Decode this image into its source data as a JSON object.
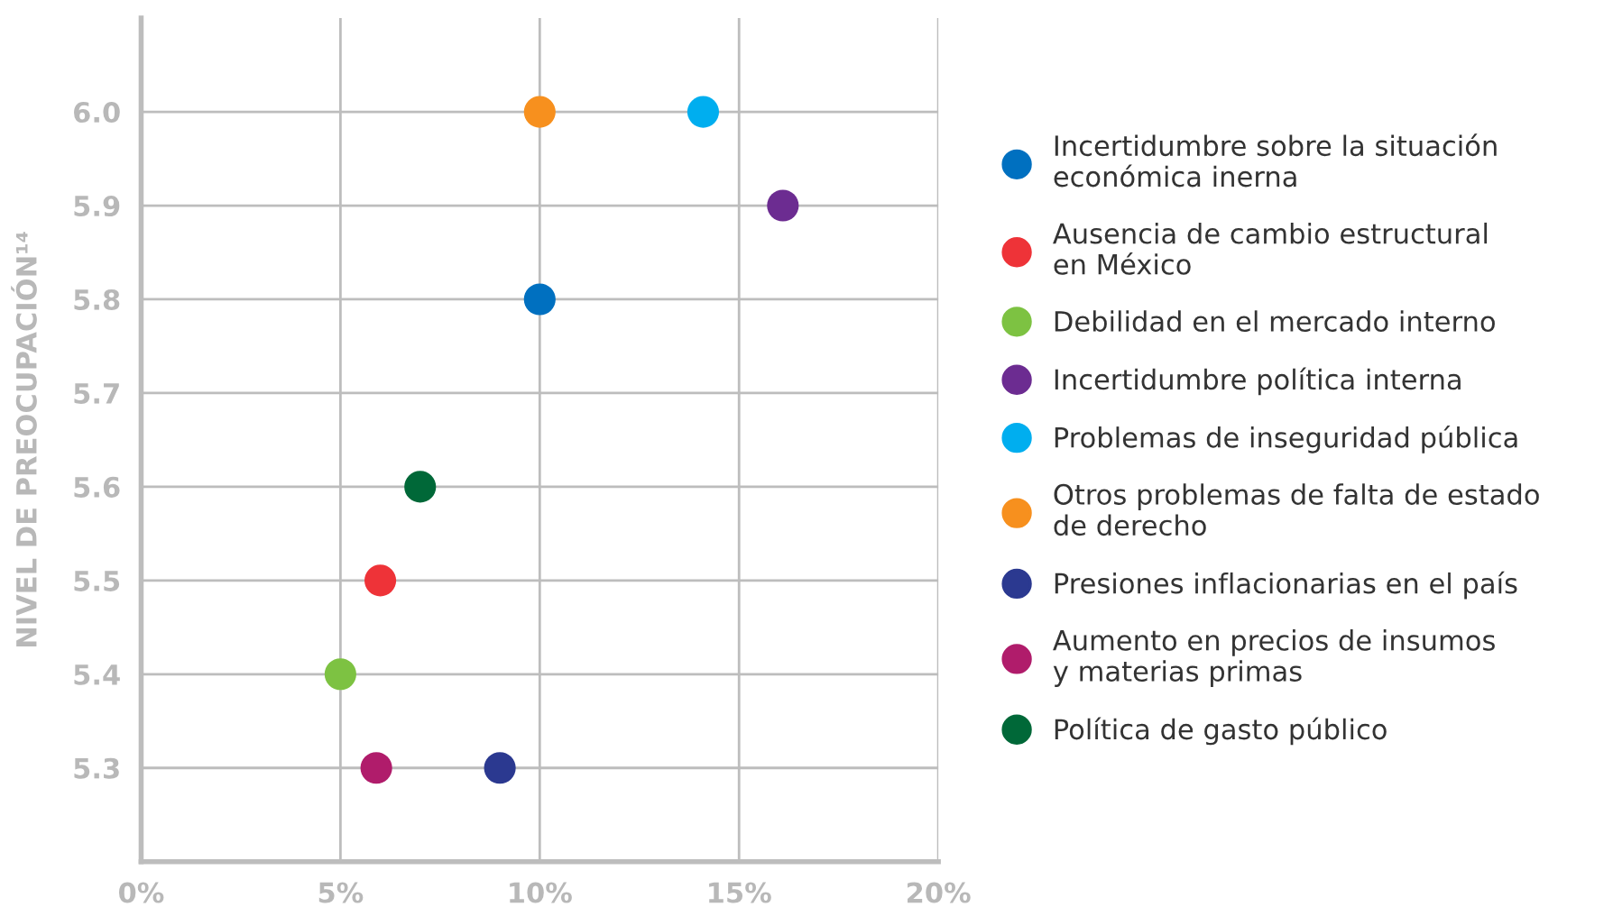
{
  "chart_data": {
    "type": "scatter",
    "ylabel": "NIVEL DE PREOCUPACIÓN¹⁴",
    "xlim": [
      0,
      20
    ],
    "xticks": [
      {
        "value": 0,
        "label": "0%"
      },
      {
        "value": 5,
        "label": "5%"
      },
      {
        "value": 10,
        "label": "10%"
      },
      {
        "value": 15,
        "label": "15%"
      },
      {
        "value": 20,
        "label": "20%"
      }
    ],
    "ylim": [
      5.2,
      6.1
    ],
    "yticks": [
      {
        "value": 5.3,
        "label": "5.3"
      },
      {
        "value": 5.4,
        "label": "5.4"
      },
      {
        "value": 5.5,
        "label": "5.5"
      },
      {
        "value": 5.6,
        "label": "5.6"
      },
      {
        "value": 5.7,
        "label": "5.7"
      },
      {
        "value": 5.8,
        "label": "5.8"
      },
      {
        "value": 5.9,
        "label": "5.9"
      },
      {
        "value": 6.0,
        "label": "6.0"
      }
    ],
    "grid": true,
    "legend": "right",
    "marker": "circle",
    "series": [
      {
        "name": "Incertidumbre sobre la situación\neconómica inerna",
        "color": "#0070c0",
        "x": [
          10.0
        ],
        "values": [
          5.8
        ]
      },
      {
        "name": "Ausencia de cambio estructural\nen México",
        "color": "#ee3338",
        "x": [
          6.0
        ],
        "values": [
          5.5
        ]
      },
      {
        "name": "Debilidad en el mercado interno",
        "color": "#7dc242",
        "x": [
          5.0
        ],
        "values": [
          5.4
        ]
      },
      {
        "name": "Incertidumbre política interna",
        "color": "#6c2c91",
        "x": [
          16.1
        ],
        "values": [
          5.9
        ]
      },
      {
        "name": "Problemas de inseguridad pública",
        "color": "#00aeef",
        "x": [
          14.1
        ],
        "values": [
          6.0
        ]
      },
      {
        "name": "Otros problemas de falta de estado\nde derecho",
        "color": "#f7901e",
        "x": [
          10.0
        ],
        "values": [
          6.0
        ]
      },
      {
        "name": "Presiones inflacionarias en el país",
        "color": "#2b3990",
        "x": [
          9.0
        ],
        "values": [
          5.3
        ]
      },
      {
        "name": "Aumento en precios de insumos\ny materias primas",
        "color": "#b01c6b",
        "x": [
          5.9
        ],
        "values": [
          5.3
        ]
      },
      {
        "name": "Política de gasto público",
        "color": "#006838",
        "x": [
          7.0
        ],
        "values": [
          5.6
        ]
      }
    ]
  }
}
